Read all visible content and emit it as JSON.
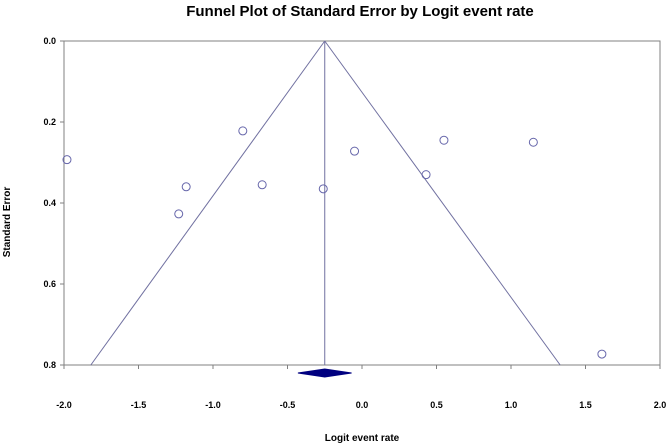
{
  "chart_data": {
    "type": "scatter",
    "title": "Funnel Plot of Standard Error by Logit event rate",
    "xlabel": "Logit event rate",
    "ylabel": "Standard Error",
    "xlim": [
      -2.0,
      2.0
    ],
    "ylim": [
      0.0,
      0.8
    ],
    "y_inverted": true,
    "x_ticks": [
      "-2.0",
      "-1.5",
      "-1.0",
      "-0.5",
      "0.0",
      "0.5",
      "1.0",
      "1.5",
      "2.0"
    ],
    "y_ticks": [
      "0.0",
      "0.2",
      "0.4",
      "0.6",
      "0.8"
    ],
    "points": [
      {
        "x": -1.98,
        "y": 0.293
      },
      {
        "x": -0.8,
        "y": 0.222
      },
      {
        "x": -1.18,
        "y": 0.36
      },
      {
        "x": -1.23,
        "y": 0.427
      },
      {
        "x": -0.67,
        "y": 0.355
      },
      {
        "x": -0.26,
        "y": 0.365
      },
      {
        "x": -0.05,
        "y": 0.272
      },
      {
        "x": 0.43,
        "y": 0.33
      },
      {
        "x": 0.55,
        "y": 0.245
      },
      {
        "x": 1.15,
        "y": 0.25
      },
      {
        "x": 1.61,
        "y": 0.773
      }
    ],
    "summary_estimate": -0.25,
    "funnel_apex": {
      "x": -0.25,
      "y": 0.0
    },
    "funnel_base": {
      "left_x": -1.82,
      "right_x": 1.33,
      "y": 0.8
    },
    "diamond": {
      "center": -0.25,
      "lower": -0.43,
      "upper": -0.07
    },
    "colors": {
      "line": "#7070a0",
      "point": "#6666aa",
      "diamond": "#000080",
      "axis": "#808080"
    }
  }
}
